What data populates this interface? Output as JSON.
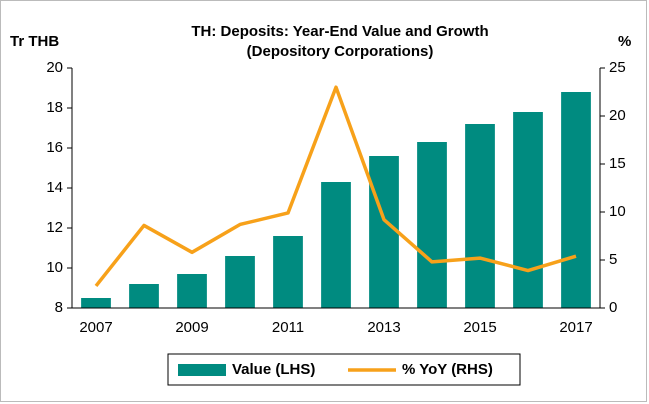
{
  "chart_data": {
    "type": "bar-line",
    "title": [
      "TH: Deposits: Year-End Value and Growth",
      "(Depository Corporations)"
    ],
    "y_label": "Tr THB",
    "y2_label": "%",
    "categories": [
      "2007",
      null,
      "2009",
      null,
      "2011",
      null,
      "2013",
      null,
      "2015",
      null,
      "2017"
    ],
    "series": [
      {
        "name": "Value (LHS)",
        "type": "bar",
        "color": "#008b80",
        "values": [
          8.5,
          9.2,
          9.7,
          10.6,
          11.6,
          14.3,
          15.6,
          16.3,
          17.2,
          17.8,
          18.8
        ]
      },
      {
        "name": "% YoY (RHS)",
        "type": "line",
        "axis": "y2",
        "color": "#f7a11a",
        "values": [
          2.3,
          8.6,
          5.8,
          8.7,
          9.9,
          23.0,
          9.2,
          4.8,
          5.2,
          3.9,
          5.4
        ]
      }
    ],
    "ylim": [
      8,
      20
    ],
    "yticks": [
      8,
      10,
      12,
      14,
      16,
      18,
      20
    ],
    "y2lim": [
      0,
      25
    ],
    "y2ticks": [
      0,
      5,
      10,
      15,
      20,
      25
    ]
  }
}
